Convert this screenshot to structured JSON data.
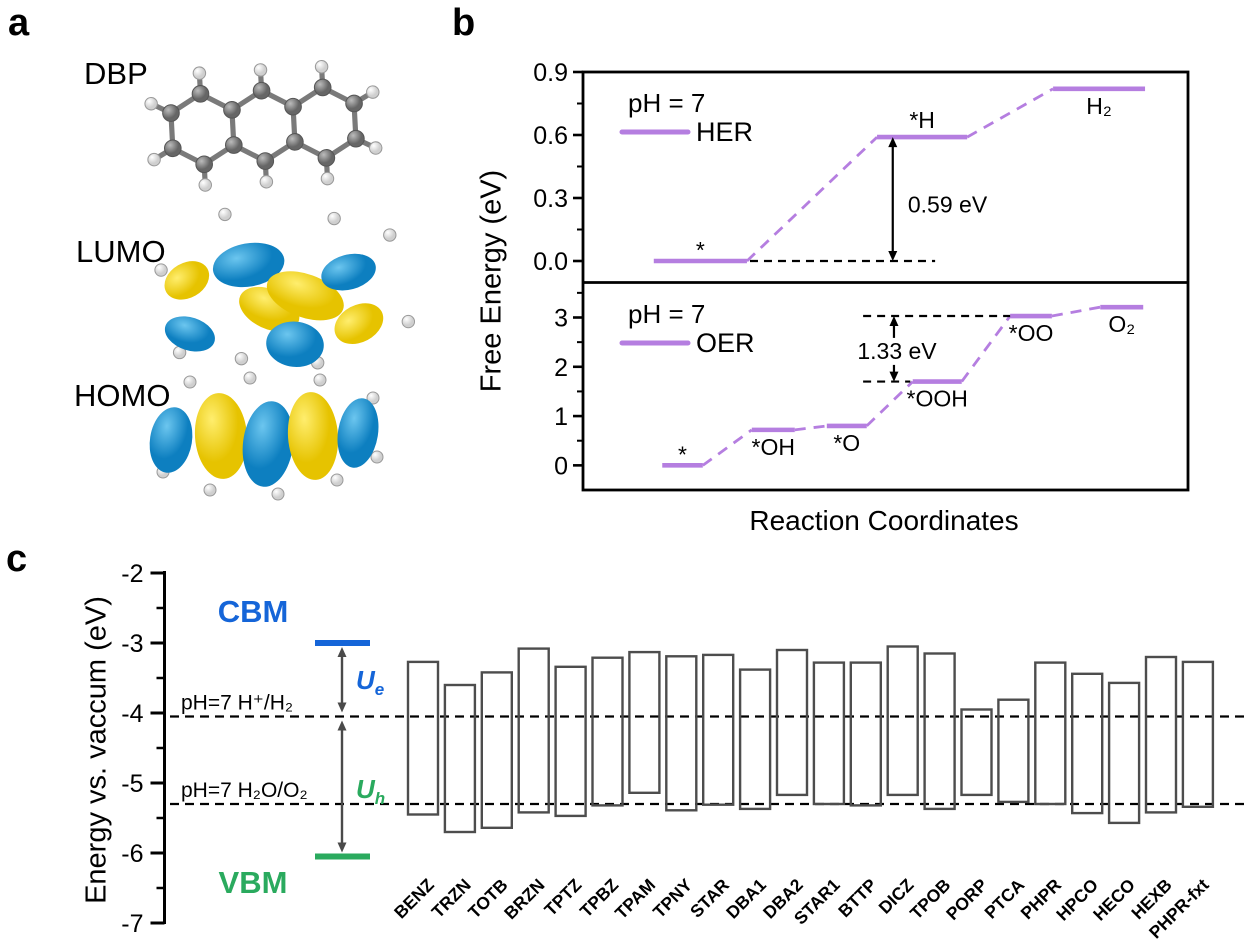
{
  "panels": {
    "a": {
      "letter": "a",
      "molecule_label": "DBP",
      "lumo_label": "LUMO",
      "homo_label": "HOMO"
    },
    "b": {
      "letter": "b",
      "ylabel": "Free Energy (eV)",
      "xlabel": "Reaction Coordinates"
    },
    "c": {
      "letter": "c",
      "ylabel": "Energy vs. vaccum (eV)"
    }
  },
  "colors": {
    "purple": "#b57ee0",
    "cbm_blue": "#1565d8",
    "vbm_green": "#2aaa5e",
    "bar_outline": "#4d4d4d",
    "arrow_gray": "#4a4a4a",
    "black": "#000000"
  },
  "chart_data": [
    {
      "id": "her",
      "type": "line",
      "subtitle": "pH = 7",
      "legend": "HER",
      "ylim": [
        -0.1,
        0.9
      ],
      "yticks": [
        {
          "v": 0.0,
          "t": "0.0"
        },
        {
          "v": 0.3,
          "t": "0.3"
        },
        {
          "v": 0.6,
          "t": "0.6"
        },
        {
          "v": 0.9,
          "t": "0.9"
        }
      ],
      "yminor": [
        0.15,
        0.45,
        0.75
      ],
      "steps": [
        {
          "label": "*",
          "G": 0.0,
          "x": [
            1.17,
            2.71
          ],
          "label_pos": "above"
        },
        {
          "label": "*H",
          "G": 0.59,
          "x": [
            4.86,
            6.35
          ],
          "label_pos": "above"
        },
        {
          "label": "H₂",
          "G": 0.82,
          "x": [
            7.77,
            9.29
          ],
          "label_pos": "below"
        }
      ],
      "annotation": {
        "text": "0.59 eV",
        "arrow_x": 5.12,
        "y_from": 0.0,
        "y_to": 0.59,
        "dashes": [
          {
            "y": 0.0,
            "x1": 2.76,
            "x2": 5.82
          }
        ],
        "text_x": 5.37,
        "text_y": 0.23,
        "anchor": "start",
        "text_bg": false
      }
    },
    {
      "id": "oer",
      "type": "line",
      "subtitle": "pH = 7",
      "legend": "OER",
      "ylim": [
        -0.5,
        3.7
      ],
      "yticks": [
        {
          "v": 0,
          "t": "0"
        },
        {
          "v": 1,
          "t": "1"
        },
        {
          "v": 2,
          "t": "2"
        },
        {
          "v": 3,
          "t": "3"
        }
      ],
      "yminor": [
        0.5,
        1.5,
        2.5,
        3.5
      ],
      "steps": [
        {
          "label": "*",
          "G": 0.0,
          "x": [
            1.31,
            1.98
          ],
          "label_pos": "above"
        },
        {
          "label": "*OH",
          "G": 0.72,
          "x": [
            2.79,
            3.5
          ],
          "label_pos": "below"
        },
        {
          "label": "*O",
          "G": 0.8,
          "x": [
            4.03,
            4.69
          ],
          "label_pos": "below"
        },
        {
          "label": "*OOH",
          "G": 1.7,
          "x": [
            5.45,
            6.26
          ],
          "label_pos": "below"
        },
        {
          "label": "*OO",
          "G": 3.03,
          "x": [
            7.06,
            7.75
          ],
          "label_pos": "below"
        },
        {
          "label": "O₂",
          "G": 3.21,
          "x": [
            8.55,
            9.26
          ],
          "label_pos": "below"
        }
      ],
      "annotation": {
        "text": "1.33 eV",
        "arrow_x": 5.14,
        "y_from": 1.7,
        "y_to": 3.03,
        "dashes": [
          {
            "y": 1.7,
            "x1": 4.63,
            "x2": 5.41
          },
          {
            "y": 3.03,
            "x1": 4.63,
            "x2": 7.06
          }
        ],
        "text_x": 5.19,
        "text_y": 2.16,
        "anchor": "middle",
        "text_bg": true
      }
    },
    {
      "id": "bands",
      "type": "bar-range",
      "ylim": [
        -7,
        -2
      ],
      "yticks": [
        {
          "v": -2,
          "t": "-2"
        },
        {
          "v": -3,
          "t": "-3"
        },
        {
          "v": -4,
          "t": "-4"
        },
        {
          "v": -5,
          "t": "-5"
        },
        {
          "v": -6,
          "t": "-6"
        },
        {
          "v": -7,
          "t": "-7"
        }
      ],
      "yminor": [
        -2.5,
        -3.5,
        -4.5,
        -5.5,
        -6.5
      ],
      "cbm": {
        "label": "CBM",
        "value": -3.0
      },
      "vbm": {
        "label": "VBM",
        "value": -6.05
      },
      "ref_lines": [
        {
          "label": "pH=7 H⁺/H₂",
          "value": -4.05
        },
        {
          "label": "pH=7 H₂O/O₂",
          "value": -5.3
        }
      ],
      "potentials": [
        {
          "symbol": "U",
          "sub": "e",
          "color": "cbm_blue"
        },
        {
          "symbol": "U",
          "sub": "h",
          "color": "vbm_green"
        }
      ],
      "categories": [
        "BENZ",
        "TRZN",
        "TOTB",
        "BRZN",
        "TPTZ",
        "TPBZ",
        "TPAM",
        "TPNY",
        "STAR",
        "DBA1",
        "DBA2",
        "STAR1",
        "BTTP",
        "DICZ",
        "TPOB",
        "PORP",
        "PTCA",
        "PHPR",
        "HPCO",
        "HECO",
        "HEXB",
        "PHPR-fxt"
      ],
      "series": [
        {
          "name": "CBM",
          "values": [
            -3.27,
            -3.6,
            -3.42,
            -3.08,
            -3.34,
            -3.21,
            -3.13,
            -3.19,
            -3.17,
            -3.38,
            -3.1,
            -3.28,
            -3.28,
            -3.05,
            -3.15,
            -3.95,
            -3.81,
            -3.28,
            -3.44,
            -3.57,
            -3.2,
            -3.27
          ]
        },
        {
          "name": "VBM",
          "values": [
            -5.45,
            -5.7,
            -5.64,
            -5.42,
            -5.47,
            -5.32,
            -5.14,
            -5.39,
            -5.31,
            -5.37,
            -5.17,
            -5.3,
            -5.32,
            -5.17,
            -5.37,
            -5.17,
            -5.27,
            -5.3,
            -5.43,
            -5.57,
            -5.42,
            -5.34
          ]
        }
      ]
    }
  ]
}
